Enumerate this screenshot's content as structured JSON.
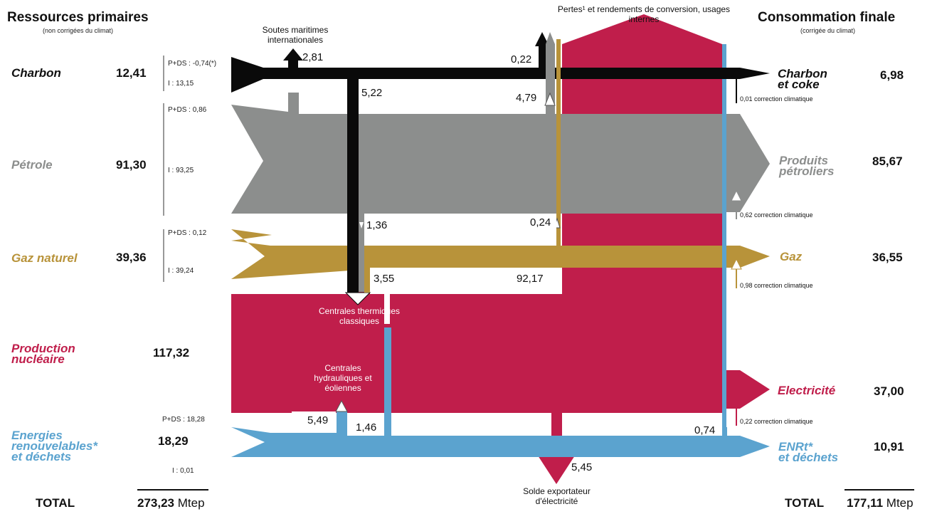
{
  "headers": {
    "left_title": "Ressources primaires",
    "left_subtitle": "(non corrigées du climat)",
    "right_title": "Consommation finale",
    "right_subtitle": "(corrigée du climat)"
  },
  "colors": {
    "charbon": "#0a0a0a",
    "petrole": "#8c8e8d",
    "gaz": "#b8933a",
    "nucleaire": "#c01e4b",
    "enr": "#5ba3cf"
  },
  "sources": {
    "charbon": {
      "label_lines": [
        "Charbon"
      ],
      "value": "12,41",
      "pds": "P+DS : -0,74(*)",
      "imp": "I : 13,15"
    },
    "petrole": {
      "label_lines": [
        "Pétrole"
      ],
      "value": "91,30",
      "pds": "P+DS : 0,86",
      "imp": "I : 93,25"
    },
    "gaz": {
      "label_lines": [
        "Gaz naturel"
      ],
      "value": "39,36",
      "pds": "P+DS : 0,12",
      "imp": "I : 39,24"
    },
    "nucleaire": {
      "label_lines": [
        "Production",
        "nucléaire"
      ],
      "value": "117,32"
    },
    "enr": {
      "label_lines": [
        "Energies",
        "renouvelables*",
        "et déchets"
      ],
      "value": "18,29",
      "pds": "P+DS : 18,28",
      "imp": "I : 0,01"
    }
  },
  "flows": {
    "soutes": "2,81",
    "coal_to_thermal": "5,22",
    "coal_losses": "0,22",
    "coal_return": "4,79",
    "oil_to_thermal": "1,36",
    "oil_losses": "0,24",
    "gas_to_thermal": "3,55",
    "total_losses": "92,17",
    "hydro": "5,49",
    "enr_to_thermal": "1,46",
    "enr_losses": "0,74",
    "export": "5,45"
  },
  "notes": {
    "soutes": "Soutes maritimes internationales",
    "pertes": "Pertes¹ et rendements de conversion, usages internes",
    "thermal": "Centrales thermiques classiques",
    "hydro": "Centrales hydrauliques et éoliennes",
    "export": "Solde exportateur d'électricité"
  },
  "final": {
    "charbon": {
      "label_lines": [
        "Charbon",
        "et coke"
      ],
      "value": "6,98",
      "correction": "0,01 correction climatique"
    },
    "petrole": {
      "label_lines": [
        "Produits",
        "pétroliers"
      ],
      "value": "85,67",
      "correction": "0,62 correction climatique"
    },
    "gaz": {
      "label_lines": [
        "Gaz"
      ],
      "value": "36,55",
      "correction": "0,98 correction climatique"
    },
    "electricite": {
      "label_lines": [
        "Electricité"
      ],
      "value": "37,00",
      "correction": "0,22 correction climatique"
    },
    "enr": {
      "label_lines": [
        "ENRt*",
        "et déchets"
      ],
      "value": "10,91"
    }
  },
  "totals": {
    "label_left": "TOTAL",
    "value_left": "273,23",
    "unit_left": "Mtep",
    "label_right": "TOTAL",
    "value_right": "177,11",
    "unit_right": "Mtep"
  }
}
